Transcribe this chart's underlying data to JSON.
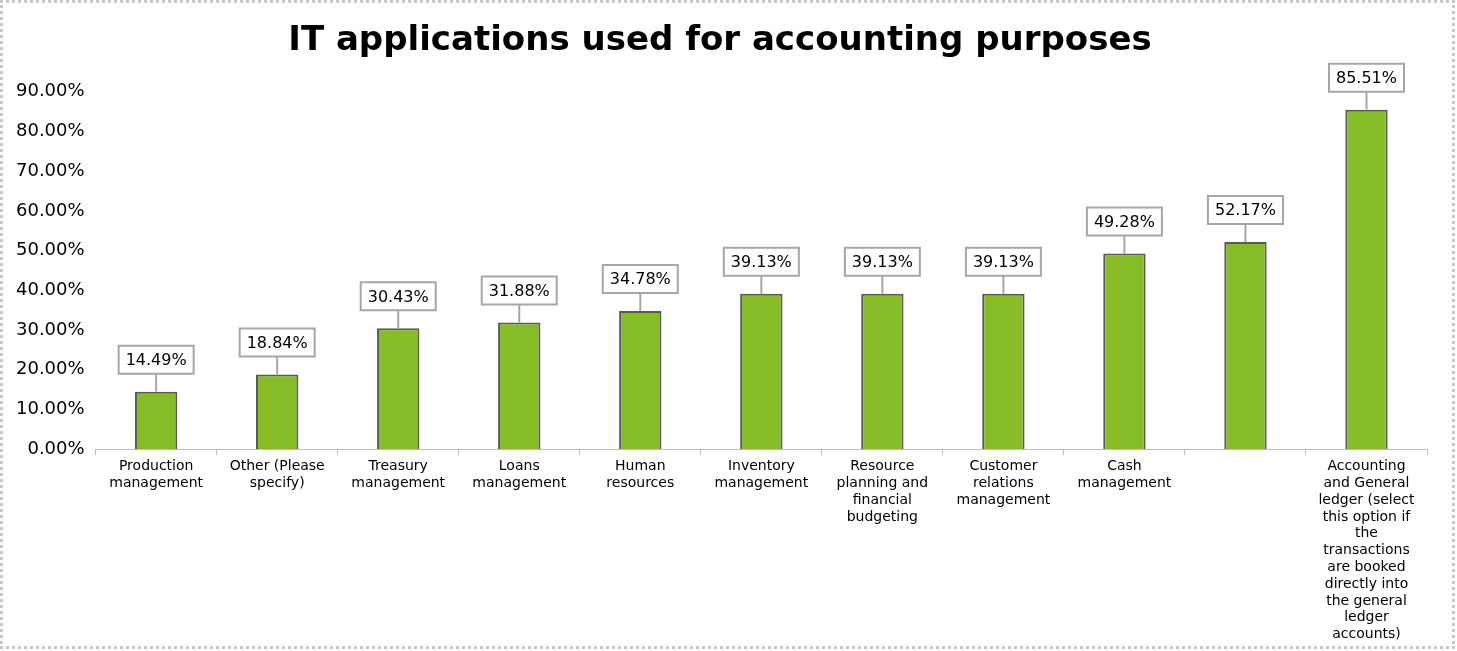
{
  "chart_data": {
    "type": "bar",
    "title": "IT applications used for accounting purposes",
    "categories": [
      "Production management",
      "Other (Please specify)",
      "Treasury management",
      "Loans management",
      "Human resources",
      "Inventory management",
      "Resource planning and financial budgeting",
      "Customer relations management",
      "Cash management",
      null,
      "Accounting and General ledger (select this option if the transactions are booked directly into the general ledger accounts)"
    ],
    "values": [
      14.49,
      18.84,
      30.43,
      31.88,
      34.78,
      39.13,
      39.13,
      39.13,
      49.28,
      52.17,
      85.51
    ],
    "value_labels": [
      "14.49%",
      "18.84%",
      "30.43%",
      "31.88%",
      "34.78%",
      "39.13%",
      "39.13%",
      "39.13%",
      "49.28%",
      "52.17%",
      "85.51%"
    ],
    "color": "#86bc25",
    "ylim": [
      0,
      90
    ],
    "yticks": [
      {
        "value": 0,
        "label": "0.00%"
      },
      {
        "value": 10,
        "label": "10.00%"
      },
      {
        "value": 20,
        "label": "20.00%"
      },
      {
        "value": 30,
        "label": "30.00%"
      },
      {
        "value": 40,
        "label": "40.00%"
      },
      {
        "value": 50,
        "label": "50.00%"
      },
      {
        "value": 60,
        "label": "60.00%"
      },
      {
        "value": 70,
        "label": "70.00%"
      },
      {
        "value": 80,
        "label": "80.00%"
      },
      {
        "value": 90,
        "label": "90.00%"
      }
    ],
    "grid": false,
    "legend": false
  }
}
